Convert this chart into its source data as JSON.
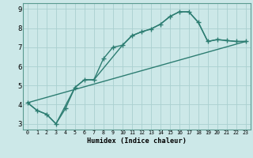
{
  "xlabel": "Humidex (Indice chaleur)",
  "bg_color": "#cce8e8",
  "grid_color": "#aad0d0",
  "line_color": "#2d7d72",
  "xlim": [
    -0.5,
    23.5
  ],
  "ylim": [
    2.7,
    9.3
  ],
  "xticks": [
    0,
    1,
    2,
    3,
    4,
    5,
    6,
    7,
    8,
    9,
    10,
    11,
    12,
    13,
    14,
    15,
    16,
    17,
    18,
    19,
    20,
    21,
    22,
    23
  ],
  "yticks": [
    3,
    4,
    5,
    6,
    7,
    8,
    9
  ],
  "line1_x": [
    0,
    1,
    2,
    3,
    4,
    5,
    6,
    7,
    8,
    9,
    10,
    11,
    12,
    13,
    14,
    15,
    16,
    17,
    18,
    19,
    20,
    21,
    22,
    23
  ],
  "line1_y": [
    4.1,
    3.7,
    3.5,
    3.0,
    3.8,
    4.9,
    5.3,
    5.3,
    6.4,
    7.0,
    7.1,
    7.6,
    7.8,
    7.95,
    8.2,
    8.6,
    8.85,
    8.85,
    8.3,
    7.3,
    7.4,
    7.35,
    7.3,
    7.3
  ],
  "line2_x": [
    0,
    1,
    2,
    3,
    5,
    6,
    7,
    10,
    11,
    12,
    13,
    14,
    15,
    16,
    17,
    18,
    19,
    20,
    21,
    22,
    23
  ],
  "line2_y": [
    4.1,
    3.7,
    3.5,
    3.0,
    4.9,
    5.3,
    5.3,
    7.1,
    7.6,
    7.8,
    7.95,
    8.2,
    8.6,
    8.85,
    8.85,
    8.3,
    7.3,
    7.4,
    7.35,
    7.3,
    7.3
  ],
  "line3_x": [
    0,
    23
  ],
  "line3_y": [
    4.1,
    7.3
  ]
}
